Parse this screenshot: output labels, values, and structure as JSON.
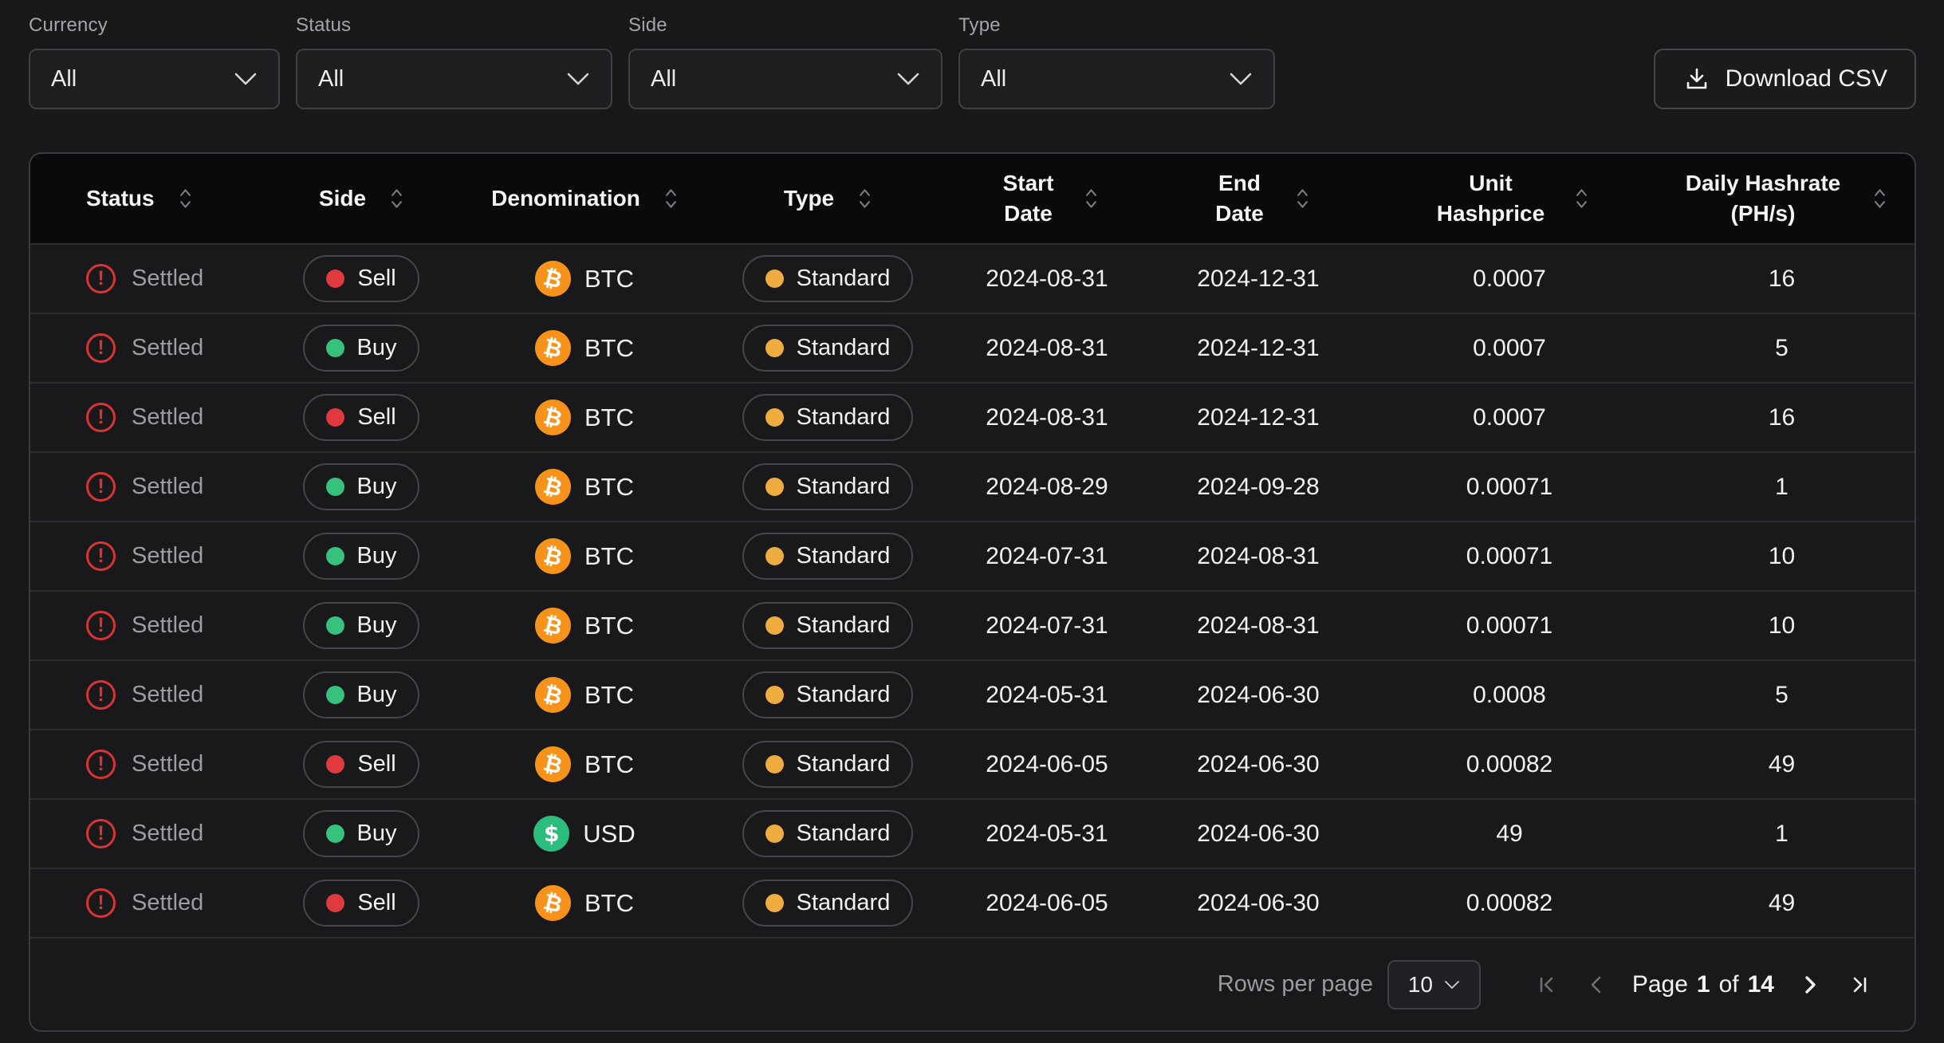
{
  "filters": [
    {
      "label": "Currency",
      "value": "All"
    },
    {
      "label": "Status",
      "value": "All"
    },
    {
      "label": "Side",
      "value": "All"
    },
    {
      "label": "Type",
      "value": "All"
    }
  ],
  "toolbar": {
    "download_label": "Download CSV"
  },
  "table": {
    "columns": [
      "Status",
      "Side",
      "Denomination",
      "Type",
      "Start Date",
      "End Date",
      "Unit Hashprice",
      "Daily Hashrate (PH/s)"
    ],
    "rows": [
      {
        "status": "Settled",
        "side": "Sell",
        "denomination": "BTC",
        "type": "Standard",
        "start_date": "2024-08-31",
        "end_date": "2024-12-31",
        "unit_hashprice": "0.0007",
        "daily_hashrate": "16"
      },
      {
        "status": "Settled",
        "side": "Buy",
        "denomination": "BTC",
        "type": "Standard",
        "start_date": "2024-08-31",
        "end_date": "2024-12-31",
        "unit_hashprice": "0.0007",
        "daily_hashrate": "5"
      },
      {
        "status": "Settled",
        "side": "Sell",
        "denomination": "BTC",
        "type": "Standard",
        "start_date": "2024-08-31",
        "end_date": "2024-12-31",
        "unit_hashprice": "0.0007",
        "daily_hashrate": "16"
      },
      {
        "status": "Settled",
        "side": "Buy",
        "denomination": "BTC",
        "type": "Standard",
        "start_date": "2024-08-29",
        "end_date": "2024-09-28",
        "unit_hashprice": "0.00071",
        "daily_hashrate": "1"
      },
      {
        "status": "Settled",
        "side": "Buy",
        "denomination": "BTC",
        "type": "Standard",
        "start_date": "2024-07-31",
        "end_date": "2024-08-31",
        "unit_hashprice": "0.00071",
        "daily_hashrate": "10"
      },
      {
        "status": "Settled",
        "side": "Buy",
        "denomination": "BTC",
        "type": "Standard",
        "start_date": "2024-07-31",
        "end_date": "2024-08-31",
        "unit_hashprice": "0.00071",
        "daily_hashrate": "10"
      },
      {
        "status": "Settled",
        "side": "Buy",
        "denomination": "BTC",
        "type": "Standard",
        "start_date": "2024-05-31",
        "end_date": "2024-06-30",
        "unit_hashprice": "0.0008",
        "daily_hashrate": "5"
      },
      {
        "status": "Settled",
        "side": "Sell",
        "denomination": "BTC",
        "type": "Standard",
        "start_date": "2024-06-05",
        "end_date": "2024-06-30",
        "unit_hashprice": "0.00082",
        "daily_hashrate": "49"
      },
      {
        "status": "Settled",
        "side": "Buy",
        "denomination": "USD",
        "type": "Standard",
        "start_date": "2024-05-31",
        "end_date": "2024-06-30",
        "unit_hashprice": "49",
        "daily_hashrate": "1"
      },
      {
        "status": "Settled",
        "side": "Sell",
        "denomination": "BTC",
        "type": "Standard",
        "start_date": "2024-06-05",
        "end_date": "2024-06-30",
        "unit_hashprice": "0.00082",
        "daily_hashrate": "49"
      }
    ]
  },
  "pagination": {
    "rows_per_page_label": "Rows per page",
    "rows_per_page_value": "10",
    "page_word": "Page",
    "current_page": "1",
    "of_word": "of",
    "total_pages": "14"
  },
  "icons": {
    "download": "download-tray-arrow",
    "sort": "sort-chevrons",
    "status": "alert-circle",
    "btc": "bitcoin-circle",
    "usd": "dollar-circle"
  },
  "colors": {
    "sell_red": "#e0393e",
    "buy_green": "#36c17c",
    "type_amber": "#f0ad3f",
    "btc_orange": "#f7931a",
    "usd_green": "#2bbd7e",
    "alert_red": "#d93434"
  }
}
